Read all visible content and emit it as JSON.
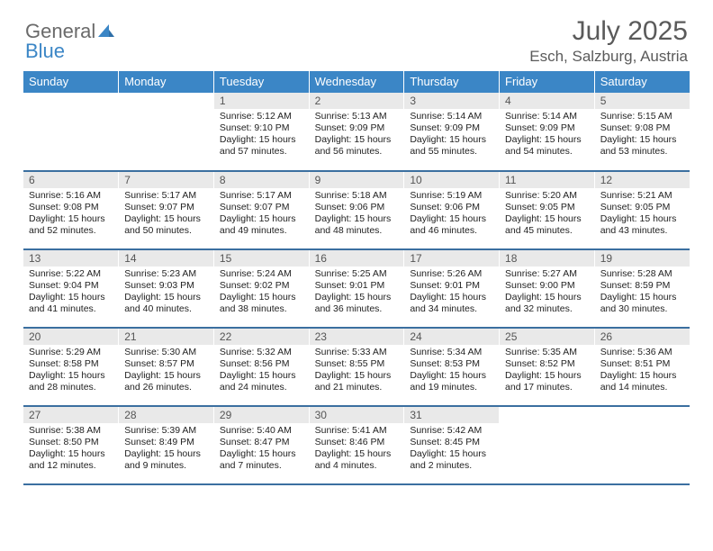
{
  "brand": {
    "word1": "General",
    "word2": "Blue"
  },
  "title": "July 2025",
  "subtitle": "Esch, Salzburg, Austria",
  "colors": {
    "header_bg": "#3b86c6",
    "header_text": "#ffffff",
    "row_border": "#3b6fa0",
    "daynum_bg": "#e9e9e9",
    "logo_gray": "#6a6a6a",
    "logo_blue": "#3b86c6",
    "title_color": "#5a5a5a"
  },
  "weekdays": [
    "Sunday",
    "Monday",
    "Tuesday",
    "Wednesday",
    "Thursday",
    "Friday",
    "Saturday"
  ],
  "weeks": [
    [
      null,
      null,
      {
        "n": "1",
        "sr": "5:12 AM",
        "ss": "9:10 PM",
        "dl": "15 hours and 57 minutes."
      },
      {
        "n": "2",
        "sr": "5:13 AM",
        "ss": "9:09 PM",
        "dl": "15 hours and 56 minutes."
      },
      {
        "n": "3",
        "sr": "5:14 AM",
        "ss": "9:09 PM",
        "dl": "15 hours and 55 minutes."
      },
      {
        "n": "4",
        "sr": "5:14 AM",
        "ss": "9:09 PM",
        "dl": "15 hours and 54 minutes."
      },
      {
        "n": "5",
        "sr": "5:15 AM",
        "ss": "9:08 PM",
        "dl": "15 hours and 53 minutes."
      }
    ],
    [
      {
        "n": "6",
        "sr": "5:16 AM",
        "ss": "9:08 PM",
        "dl": "15 hours and 52 minutes."
      },
      {
        "n": "7",
        "sr": "5:17 AM",
        "ss": "9:07 PM",
        "dl": "15 hours and 50 minutes."
      },
      {
        "n": "8",
        "sr": "5:17 AM",
        "ss": "9:07 PM",
        "dl": "15 hours and 49 minutes."
      },
      {
        "n": "9",
        "sr": "5:18 AM",
        "ss": "9:06 PM",
        "dl": "15 hours and 48 minutes."
      },
      {
        "n": "10",
        "sr": "5:19 AM",
        "ss": "9:06 PM",
        "dl": "15 hours and 46 minutes."
      },
      {
        "n": "11",
        "sr": "5:20 AM",
        "ss": "9:05 PM",
        "dl": "15 hours and 45 minutes."
      },
      {
        "n": "12",
        "sr": "5:21 AM",
        "ss": "9:05 PM",
        "dl": "15 hours and 43 minutes."
      }
    ],
    [
      {
        "n": "13",
        "sr": "5:22 AM",
        "ss": "9:04 PM",
        "dl": "15 hours and 41 minutes."
      },
      {
        "n": "14",
        "sr": "5:23 AM",
        "ss": "9:03 PM",
        "dl": "15 hours and 40 minutes."
      },
      {
        "n": "15",
        "sr": "5:24 AM",
        "ss": "9:02 PM",
        "dl": "15 hours and 38 minutes."
      },
      {
        "n": "16",
        "sr": "5:25 AM",
        "ss": "9:01 PM",
        "dl": "15 hours and 36 minutes."
      },
      {
        "n": "17",
        "sr": "5:26 AM",
        "ss": "9:01 PM",
        "dl": "15 hours and 34 minutes."
      },
      {
        "n": "18",
        "sr": "5:27 AM",
        "ss": "9:00 PM",
        "dl": "15 hours and 32 minutes."
      },
      {
        "n": "19",
        "sr": "5:28 AM",
        "ss": "8:59 PM",
        "dl": "15 hours and 30 minutes."
      }
    ],
    [
      {
        "n": "20",
        "sr": "5:29 AM",
        "ss": "8:58 PM",
        "dl": "15 hours and 28 minutes."
      },
      {
        "n": "21",
        "sr": "5:30 AM",
        "ss": "8:57 PM",
        "dl": "15 hours and 26 minutes."
      },
      {
        "n": "22",
        "sr": "5:32 AM",
        "ss": "8:56 PM",
        "dl": "15 hours and 24 minutes."
      },
      {
        "n": "23",
        "sr": "5:33 AM",
        "ss": "8:55 PM",
        "dl": "15 hours and 21 minutes."
      },
      {
        "n": "24",
        "sr": "5:34 AM",
        "ss": "8:53 PM",
        "dl": "15 hours and 19 minutes."
      },
      {
        "n": "25",
        "sr": "5:35 AM",
        "ss": "8:52 PM",
        "dl": "15 hours and 17 minutes."
      },
      {
        "n": "26",
        "sr": "5:36 AM",
        "ss": "8:51 PM",
        "dl": "15 hours and 14 minutes."
      }
    ],
    [
      {
        "n": "27",
        "sr": "5:38 AM",
        "ss": "8:50 PM",
        "dl": "15 hours and 12 minutes."
      },
      {
        "n": "28",
        "sr": "5:39 AM",
        "ss": "8:49 PM",
        "dl": "15 hours and 9 minutes."
      },
      {
        "n": "29",
        "sr": "5:40 AM",
        "ss": "8:47 PM",
        "dl": "15 hours and 7 minutes."
      },
      {
        "n": "30",
        "sr": "5:41 AM",
        "ss": "8:46 PM",
        "dl": "15 hours and 4 minutes."
      },
      {
        "n": "31",
        "sr": "5:42 AM",
        "ss": "8:45 PM",
        "dl": "15 hours and 2 minutes."
      },
      null,
      null
    ]
  ],
  "labels": {
    "sunrise": "Sunrise:",
    "sunset": "Sunset:",
    "daylight": "Daylight:"
  }
}
